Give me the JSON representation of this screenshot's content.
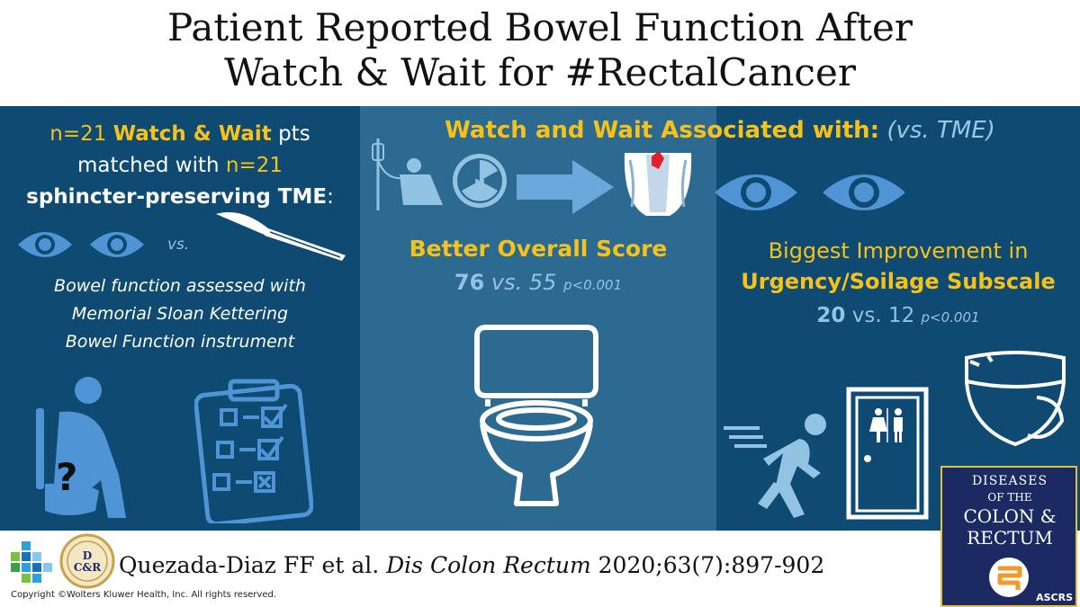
{
  "title": {
    "line1": "Patient Reported Bowel Function After",
    "line2": "Watch & Wait for #RectalCancer"
  },
  "left": {
    "n1": "n=21",
    "ww": "Watch & Wait",
    "pts": "pts",
    "matched": "matched with",
    "n2": "n=21",
    "tme": "sphincter-preserving TME",
    "colon": ":",
    "vs": "vs.",
    "desc_line1": "Bowel function assessed with",
    "desc_line2": "Memorial Sloan Kettering",
    "desc_line3": "Bowel Function instrument",
    "question_mark": "?"
  },
  "assoc": {
    "label": "Watch and Wait Associated with:",
    "vs": "(vs. TME)"
  },
  "middle": {
    "score_title": "Better Overall Score",
    "score_a": "76",
    "score_vs": "vs. 55",
    "p": "p<0.001"
  },
  "right": {
    "title_line1": "Biggest Improvement in",
    "title_line2": "Urgency/Soilage Subscale",
    "score_a": "20",
    "score_vs": "vs. 12",
    "p": "p<0.001"
  },
  "citation": {
    "authors": "Quezada-Diaz FF et al.",
    "journal": "Dis Colon Rectum",
    "ref": "2020;63(7):897-902"
  },
  "copyright": "Copyright ©Wolters Kluwer Health, Inc. All rights reserved.",
  "badge": {
    "text": "D C&R"
  },
  "journal_cover": {
    "line1": "DISEASES",
    "line2": "OF THE",
    "line3": "COLON &",
    "line4": "RECTUM",
    "society": "ASCRS"
  },
  "colors": {
    "panel": "#0e4a72",
    "middle_panel": "#2d6a92",
    "highlight": "#f6c21a",
    "light_blue": "#93c3e3",
    "icon": "#4f94d4"
  },
  "icons": [
    "eye-icon",
    "scalpel-icon",
    "iv-chair-icon",
    "radiation-icon",
    "arrow-right-icon",
    "rectum-anatomy-icon",
    "toilet-icon",
    "person-on-toilet-icon",
    "clipboard-checklist-icon",
    "running-person-icon",
    "restroom-door-icon",
    "diaper-icon"
  ]
}
